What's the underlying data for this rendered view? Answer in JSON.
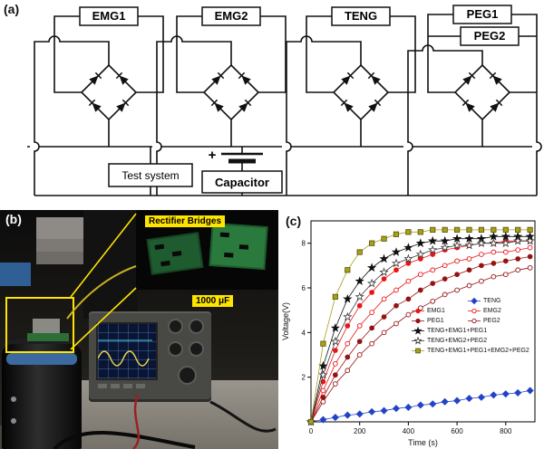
{
  "panel_a": {
    "label": "(a)",
    "generators": [
      "EMG1",
      "EMG2",
      "TENG",
      "PEG1",
      "PEG2"
    ],
    "test_system": "Test system",
    "capacitor": "Capacitor",
    "capacitor_plus": "+"
  },
  "panel_b": {
    "label": "(b)",
    "annotation_rectifier": "Rectifier Bridges",
    "annotation_capacitance": "1000 μF",
    "highlight_color": "#ffe400"
  },
  "panel_c": {
    "label": "(c)"
  },
  "chart_data": {
    "type": "line",
    "title": "",
    "xlabel": "Time (s)",
    "ylabel": "Voltage(V)",
    "xlim": [
      0,
      920
    ],
    "ylim": [
      0,
      9
    ],
    "xticks": [
      0,
      200,
      400,
      600,
      800
    ],
    "yticks": [
      2,
      4,
      6,
      8
    ],
    "grid": false,
    "legend_position": "center-right",
    "x": [
      0,
      50,
      100,
      150,
      200,
      250,
      300,
      350,
      400,
      450,
      500,
      550,
      600,
      650,
      700,
      750,
      800,
      850,
      900
    ],
    "series": [
      {
        "name": "TENG",
        "color": "#2242c8",
        "marker": "diamond",
        "open": false,
        "values": [
          0,
          0.1,
          0.2,
          0.3,
          0.35,
          0.45,
          0.5,
          0.6,
          0.65,
          0.75,
          0.8,
          0.9,
          0.95,
          1.05,
          1.1,
          1.2,
          1.25,
          1.3,
          1.4
        ]
      },
      {
        "name": "EMG1",
        "color": "#e81416",
        "marker": "circle",
        "open": false,
        "values": [
          0,
          1.8,
          3.2,
          4.3,
          5.2,
          5.8,
          6.4,
          6.8,
          7.1,
          7.3,
          7.5,
          7.7,
          7.8,
          7.9,
          8.0,
          8.0,
          8.1,
          8.1,
          8.1
        ]
      },
      {
        "name": "EMG2",
        "color": "#e81416",
        "marker": "circle",
        "open": true,
        "values": [
          0,
          1.4,
          2.6,
          3.5,
          4.3,
          4.9,
          5.5,
          5.9,
          6.3,
          6.6,
          6.8,
          7.0,
          7.2,
          7.3,
          7.5,
          7.6,
          7.6,
          7.7,
          7.8
        ]
      },
      {
        "name": "PEG1",
        "color": "#951313",
        "marker": "circle",
        "open": false,
        "values": [
          0,
          1.1,
          2.1,
          2.9,
          3.6,
          4.2,
          4.7,
          5.2,
          5.5,
          5.9,
          6.2,
          6.4,
          6.6,
          6.8,
          7.0,
          7.1,
          7.2,
          7.3,
          7.4
        ]
      },
      {
        "name": "PEG2",
        "color": "#951313",
        "marker": "circle",
        "open": true,
        "values": [
          0,
          0.9,
          1.7,
          2.3,
          3.0,
          3.5,
          4.0,
          4.4,
          4.8,
          5.1,
          5.4,
          5.7,
          5.9,
          6.1,
          6.3,
          6.5,
          6.6,
          6.8,
          6.9
        ]
      },
      {
        "name": "TENG+EMG1+PEG1",
        "color": "#111111",
        "marker": "star",
        "open": false,
        "values": [
          0,
          2.5,
          4.2,
          5.5,
          6.3,
          6.9,
          7.3,
          7.6,
          7.8,
          8.0,
          8.1,
          8.1,
          8.2,
          8.2,
          8.2,
          8.3,
          8.3,
          8.3,
          8.3
        ]
      },
      {
        "name": "TENG+EMG2+PEG2",
        "color": "#3a3a3a",
        "marker": "star",
        "open": true,
        "values": [
          0,
          2.1,
          3.6,
          4.7,
          5.6,
          6.2,
          6.7,
          7.1,
          7.3,
          7.5,
          7.7,
          7.8,
          7.9,
          7.9,
          8.0,
          8.0,
          8.0,
          8.1,
          8.1
        ]
      },
      {
        "name": "TENG+EMG1+PEG1+EMG2+PEG2",
        "color": "#a8a015",
        "marker": "square",
        "open": false,
        "values": [
          0,
          3.5,
          5.6,
          6.8,
          7.6,
          8.0,
          8.2,
          8.4,
          8.5,
          8.5,
          8.6,
          8.6,
          8.6,
          8.6,
          8.6,
          8.6,
          8.6,
          8.6,
          8.6
        ]
      }
    ],
    "legend_rows": [
      [
        -1,
        0
      ],
      [
        1,
        2
      ],
      [
        3,
        4
      ],
      [
        5
      ],
      [
        6
      ],
      [
        7
      ]
    ]
  }
}
